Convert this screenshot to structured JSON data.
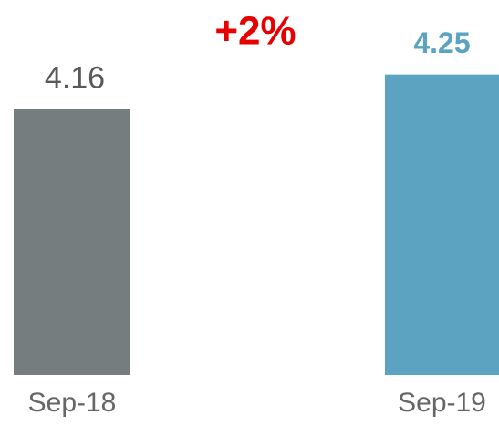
{
  "chart_data": {
    "type": "bar",
    "annotation": "+2%",
    "annotation_color": "#e60000",
    "categories": [
      "Sep-18",
      "Sep-19"
    ],
    "values": [
      4.16,
      4.25
    ],
    "colors": [
      "#767d7f",
      "#5ba3c0"
    ],
    "label_colors": [
      "#595959",
      "#5ba3c0"
    ],
    "ylim": [
      3.47,
      4.37
    ]
  }
}
